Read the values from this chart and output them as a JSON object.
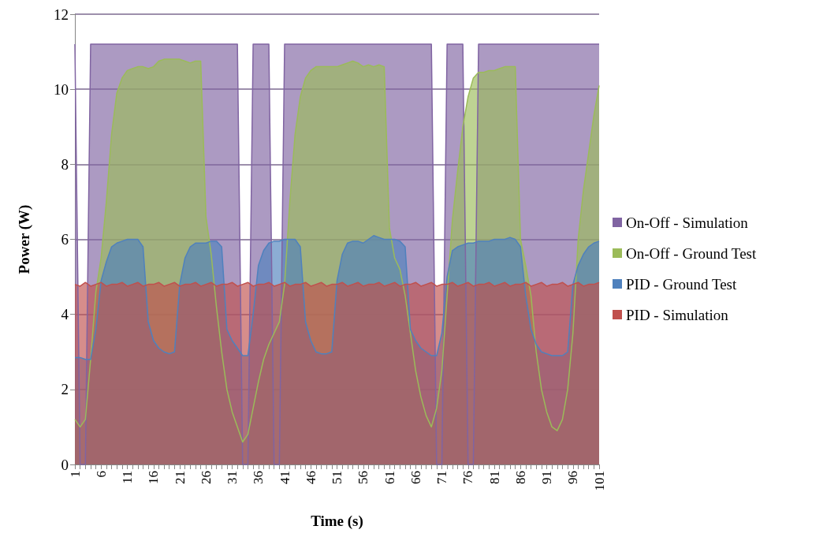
{
  "chart_data": {
    "type": "area",
    "xlabel": "Time (s)",
    "ylabel": "Power (W)",
    "categories": [
      "1",
      null,
      null,
      null,
      null,
      "6",
      null,
      null,
      null,
      null,
      "11",
      null,
      null,
      null,
      null,
      "16",
      null,
      null,
      null,
      null,
      "21",
      null,
      null,
      null,
      null,
      "26",
      null,
      null,
      null,
      null,
      "31",
      null,
      null,
      null,
      null,
      "36",
      null,
      null,
      null,
      null,
      "41",
      null,
      null,
      null,
      null,
      "46",
      null,
      null,
      null,
      null,
      "51",
      null,
      null,
      null,
      null,
      "56",
      null,
      null,
      null,
      null,
      "61",
      null,
      null,
      null,
      null,
      "66",
      null,
      null,
      null,
      null,
      "71",
      null,
      null,
      null,
      null,
      "76",
      null,
      null,
      null,
      null,
      "81",
      null,
      null,
      null,
      null,
      "86",
      null,
      null,
      null,
      null,
      "91",
      null,
      null,
      null,
      null,
      "96",
      null,
      null,
      null,
      null,
      "101"
    ],
    "series": [
      {
        "name": "On-Off - Simulation",
        "color": "#8064a2",
        "values": [
          11.2,
          0,
          0,
          11.2,
          11.2,
          11.2,
          11.2,
          11.2,
          11.2,
          11.2,
          11.2,
          11.2,
          11.2,
          11.2,
          11.2,
          11.2,
          11.2,
          11.2,
          11.2,
          11.2,
          11.2,
          11.2,
          11.2,
          11.2,
          11.2,
          11.2,
          11.2,
          11.2,
          11.2,
          11.2,
          11.2,
          11.2,
          0,
          0,
          11.2,
          11.2,
          11.2,
          11.2,
          0,
          0,
          11.2,
          11.2,
          11.2,
          11.2,
          11.2,
          11.2,
          11.2,
          11.2,
          11.2,
          11.2,
          11.2,
          11.2,
          11.2,
          11.2,
          11.2,
          11.2,
          11.2,
          11.2,
          11.2,
          11.2,
          11.2,
          11.2,
          11.2,
          11.2,
          11.2,
          11.2,
          11.2,
          11.2,
          11.2,
          0,
          0,
          11.2,
          11.2,
          11.2,
          11.2,
          0,
          0,
          11.2,
          11.2,
          11.2,
          11.2,
          11.2,
          11.2,
          11.2,
          11.2,
          11.2,
          11.2,
          11.2,
          11.2,
          11.2,
          11.2,
          11.2,
          11.2,
          11.2,
          11.2,
          11.2,
          11.2,
          11.2,
          11.2,
          11.2,
          11.2
        ]
      },
      {
        "name": "On-Off - Ground Test",
        "color": "#9bbb59",
        "values": [
          1.2,
          1.0,
          1.2,
          2.8,
          4.6,
          5.5,
          7.0,
          8.8,
          9.9,
          10.3,
          10.5,
          10.55,
          10.6,
          10.6,
          10.55,
          10.6,
          10.75,
          10.8,
          10.8,
          10.8,
          10.8,
          10.75,
          10.7,
          10.75,
          10.75,
          6.6,
          5.6,
          4.2,
          3.0,
          2.0,
          1.4,
          1.0,
          0.6,
          0.8,
          1.5,
          2.2,
          2.8,
          3.2,
          3.5,
          3.8,
          4.8,
          7.0,
          8.8,
          9.8,
          10.3,
          10.5,
          10.6,
          10.6,
          10.6,
          10.6,
          10.6,
          10.65,
          10.7,
          10.75,
          10.7,
          10.6,
          10.65,
          10.6,
          10.65,
          10.6,
          6.3,
          5.5,
          5.2,
          4.5,
          3.5,
          2.5,
          1.8,
          1.3,
          1.0,
          1.5,
          2.5,
          4.5,
          6.5,
          7.8,
          9.0,
          9.8,
          10.3,
          10.45,
          10.45,
          10.5,
          10.5,
          10.55,
          10.6,
          10.6,
          10.6,
          6.0,
          5.3,
          4.5,
          3.0,
          2.0,
          1.4,
          1.0,
          0.9,
          1.2,
          2.0,
          3.5,
          6.0,
          7.3,
          8.3,
          9.3,
          10.1
        ]
      },
      {
        "name": "PID - Ground Test",
        "color": "#4f81bd",
        "values": [
          2.85,
          2.85,
          2.8,
          2.8,
          3.6,
          4.9,
          5.4,
          5.8,
          5.9,
          5.95,
          6.0,
          6.0,
          6.0,
          5.8,
          3.8,
          3.3,
          3.1,
          3.0,
          2.95,
          3.0,
          4.8,
          5.5,
          5.8,
          5.9,
          5.9,
          5.9,
          5.95,
          5.95,
          5.8,
          3.6,
          3.3,
          3.1,
          2.9,
          2.9,
          4.0,
          5.3,
          5.7,
          5.9,
          5.95,
          5.95,
          6.0,
          6.0,
          6.0,
          5.8,
          3.8,
          3.3,
          3.0,
          2.95,
          2.95,
          3.0,
          4.9,
          5.6,
          5.9,
          5.95,
          5.95,
          5.9,
          6.0,
          6.1,
          6.05,
          6.0,
          6.0,
          6.0,
          5.95,
          5.8,
          3.6,
          3.3,
          3.1,
          3.0,
          2.9,
          2.9,
          3.5,
          5.0,
          5.7,
          5.8,
          5.85,
          5.9,
          5.9,
          5.95,
          5.95,
          5.95,
          6.0,
          6.0,
          6.0,
          6.05,
          6.0,
          5.8,
          4.5,
          3.6,
          3.2,
          3.0,
          2.95,
          2.9,
          2.9,
          2.9,
          3.0,
          4.8,
          5.3,
          5.6,
          5.8,
          5.9,
          5.95
        ]
      },
      {
        "name": "PID - Simulation",
        "color": "#c0504d",
        "values": [
          4.8,
          4.75,
          4.85,
          4.75,
          4.8,
          4.85,
          4.75,
          4.8,
          4.8,
          4.85,
          4.75,
          4.8,
          4.85,
          4.75,
          4.8,
          4.8,
          4.85,
          4.75,
          4.8,
          4.85,
          4.75,
          4.8,
          4.8,
          4.85,
          4.75,
          4.8,
          4.85,
          4.75,
          4.8,
          4.8,
          4.85,
          4.75,
          4.8,
          4.85,
          4.75,
          4.8,
          4.8,
          4.85,
          4.75,
          4.8,
          4.85,
          4.75,
          4.8,
          4.8,
          4.85,
          4.75,
          4.8,
          4.85,
          4.75,
          4.8,
          4.8,
          4.85,
          4.75,
          4.8,
          4.85,
          4.75,
          4.8,
          4.8,
          4.85,
          4.75,
          4.8,
          4.85,
          4.75,
          4.8,
          4.8,
          4.85,
          4.75,
          4.8,
          4.85,
          4.75,
          4.8,
          4.8,
          4.85,
          4.75,
          4.8,
          4.85,
          4.75,
          4.8,
          4.8,
          4.85,
          4.75,
          4.8,
          4.85,
          4.75,
          4.8,
          4.8,
          4.85,
          4.75,
          4.8,
          4.85,
          4.75,
          4.8,
          4.8,
          4.85,
          4.75,
          4.8,
          4.85,
          4.75,
          4.8,
          4.8,
          4.85
        ]
      }
    ],
    "ylim": [
      0,
      12
    ],
    "yticks": [
      0,
      2,
      4,
      6,
      8,
      10,
      12
    ],
    "grid": "y",
    "legend": "right",
    "marker": "none",
    "line_style": "solid"
  }
}
